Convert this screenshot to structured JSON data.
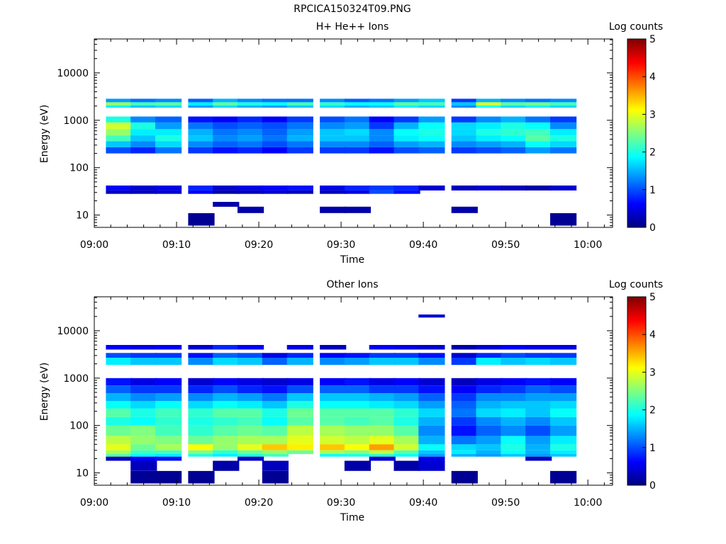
{
  "figure_title": "RPCICA150324T09.PNG",
  "chart_data": [
    {
      "type": "heatmap",
      "title": "H+ He++ Ions",
      "xlabel": "Time",
      "ylabel": "Energy (eV)",
      "x_ticks": [
        "09:00",
        "09:10",
        "09:20",
        "09:30",
        "09:40",
        "09:50",
        "10:00"
      ],
      "x_range": [
        "09:00",
        "10:03"
      ],
      "yscale": "log",
      "y_ticks": [
        10,
        100,
        1000,
        10000
      ],
      "ylim": [
        5.5,
        52000
      ],
      "colorbar": {
        "label": "Log counts",
        "ticks": [
          0,
          1,
          2,
          3,
          4,
          5
        ],
        "range": [
          0,
          5
        ],
        "colormap": "jet"
      },
      "time_bins": [
        "09:03",
        "09:06",
        "09:09",
        "09:13",
        "09:16",
        "09:19",
        "09:22",
        "09:25",
        "09:29",
        "09:32",
        "09:35",
        "09:38",
        "09:41",
        "09:45",
        "09:48",
        "09:51",
        "09:54",
        "09:57"
      ],
      "energy_bands": [
        {
          "e_low": 2400,
          "e_high": 2850,
          "counts": [
            1.4,
            1.2,
            1.3,
            1.1,
            1.5,
            1.3,
            1.2,
            1.2,
            1.3,
            1.1,
            1.2,
            1.4,
            1.6,
            0.9,
            1.5,
            1.3,
            1.2,
            1.3
          ]
        },
        {
          "e_low": 2050,
          "e_high": 2400,
          "counts": [
            2.6,
            2.2,
            2.3,
            1.8,
            2.3,
            2.0,
            1.9,
            2.2,
            2.1,
            1.9,
            1.9,
            2.3,
            2.2,
            1.6,
            2.9,
            2.3,
            2.4,
            2.2
          ]
        },
        {
          "e_low": 1850,
          "e_high": 2050,
          "counts": [
            1.8,
            1.6,
            1.7,
            1.4,
            1.7,
            1.5,
            1.4,
            1.6,
            1.7,
            1.5,
            1.6,
            1.8,
            1.7,
            1.3,
            1.9,
            1.7,
            1.8,
            1.7
          ]
        },
        {
          "e_low": 900,
          "e_high": 1200,
          "counts": [
            2.0,
            1.3,
            1.1,
            0.7,
            0.6,
            0.8,
            0.6,
            0.9,
            1.0,
            1.2,
            0.6,
            0.9,
            1.4,
            0.9,
            1.3,
            1.5,
            1.2,
            0.9
          ]
        },
        {
          "e_low": 650,
          "e_high": 900,
          "counts": [
            2.9,
            2.0,
            1.4,
            1.2,
            1.0,
            1.1,
            1.0,
            1.2,
            1.3,
            1.4,
            0.9,
            1.5,
            1.9,
            1.7,
            1.8,
            2.0,
            1.9,
            1.3
          ]
        },
        {
          "e_low": 480,
          "e_high": 650,
          "counts": [
            2.6,
            1.8,
            1.8,
            1.5,
            1.2,
            1.3,
            1.1,
            1.4,
            1.6,
            1.7,
            1.3,
            1.9,
            2.0,
            1.7,
            2.0,
            2.1,
            2.2,
            1.8
          ]
        },
        {
          "e_low": 360,
          "e_high": 480,
          "counts": [
            2.2,
            1.6,
            2.0,
            1.6,
            1.3,
            1.4,
            1.2,
            1.5,
            1.6,
            1.6,
            1.3,
            1.8,
            1.9,
            1.6,
            1.8,
            1.9,
            2.3,
            2.0
          ]
        },
        {
          "e_low": 270,
          "e_high": 360,
          "counts": [
            1.6,
            1.3,
            1.7,
            1.3,
            1.1,
            1.2,
            1.0,
            1.2,
            1.3,
            1.3,
            1.1,
            1.4,
            1.5,
            1.3,
            1.4,
            1.5,
            1.9,
            1.7
          ]
        },
        {
          "e_low": 200,
          "e_high": 270,
          "counts": [
            1.0,
            0.8,
            1.2,
            0.9,
            0.7,
            0.8,
            0.6,
            0.9,
            0.9,
            0.9,
            0.7,
            1.0,
            1.1,
            0.9,
            1.0,
            1.1,
            1.4,
            1.2
          ]
        },
        {
          "e_low": 33,
          "e_high": 42,
          "counts": [
            0.6,
            0.4,
            0.5,
            0.8,
            0.4,
            0.5,
            0.6,
            0.7,
            0.5,
            0.8,
            0.9,
            0.8,
            0.4,
            0.3,
            0.4,
            0.3,
            0.2,
            0.4
          ]
        },
        {
          "e_low": 28,
          "e_high": 33,
          "counts": [
            0.3,
            0.3,
            0.4,
            0.6,
            0.2,
            0.3,
            0.4,
            0.3,
            0.3,
            0.5,
            1.0,
            0.7,
            null,
            null,
            null,
            null,
            null,
            null
          ]
        },
        {
          "e_low": 15,
          "e_high": 19,
          "counts": [
            null,
            null,
            null,
            null,
            0.2,
            null,
            null,
            null,
            null,
            null,
            null,
            null,
            null,
            null,
            null,
            null,
            null,
            null
          ]
        },
        {
          "e_low": 11,
          "e_high": 15,
          "counts": [
            null,
            null,
            null,
            null,
            null,
            0.2,
            null,
            null,
            0.2,
            0.2,
            null,
            null,
            null,
            0.2,
            null,
            null,
            null,
            null
          ]
        },
        {
          "e_low": 6,
          "e_high": 11,
          "counts": [
            null,
            null,
            null,
            0.1,
            null,
            null,
            null,
            null,
            null,
            null,
            null,
            null,
            null,
            null,
            null,
            null,
            null,
            0.1
          ]
        }
      ]
    },
    {
      "type": "heatmap",
      "title": "Other Ions",
      "xlabel": "Time",
      "ylabel": "Energy (eV)",
      "x_ticks": [
        "09:00",
        "09:10",
        "09:20",
        "09:30",
        "09:40",
        "09:50",
        "10:00"
      ],
      "x_range": [
        "09:00",
        "10:03"
      ],
      "yscale": "log",
      "y_ticks": [
        10,
        100,
        1000,
        10000
      ],
      "ylim": [
        5.5,
        52000
      ],
      "colorbar": {
        "label": "Log counts",
        "ticks": [
          0,
          1,
          2,
          3,
          4,
          5
        ],
        "range": [
          0,
          5
        ],
        "colormap": "jet"
      },
      "time_bins": [
        "09:03",
        "09:06",
        "09:09",
        "09:13",
        "09:16",
        "09:19",
        "09:22",
        "09:25",
        "09:29",
        "09:32",
        "09:35",
        "09:38",
        "09:41",
        "09:45",
        "09:48",
        "09:51",
        "09:54",
        "09:57"
      ],
      "energy_bands": [
        {
          "e_low": 19000,
          "e_high": 22000,
          "counts": [
            null,
            null,
            null,
            null,
            null,
            null,
            null,
            null,
            null,
            null,
            null,
            null,
            0.4,
            null,
            null,
            null,
            null,
            null
          ]
        },
        {
          "e_low": 4000,
          "e_high": 5000,
          "counts": [
            0.6,
            0.5,
            0.6,
            0.4,
            0.8,
            0.6,
            null,
            0.5,
            0.3,
            null,
            0.6,
            0.5,
            0.4,
            0.2,
            0.4,
            0.6,
            0.5,
            0.5
          ]
        },
        {
          "e_low": 2700,
          "e_high": 3400,
          "counts": [
            1.0,
            0.9,
            0.9,
            0.7,
            1.1,
            1.0,
            0.5,
            0.8,
            0.6,
            0.7,
            0.9,
            0.9,
            0.7,
            0.4,
            0.8,
            1.0,
            0.9,
            0.9
          ]
        },
        {
          "e_low": 1900,
          "e_high": 2700,
          "counts": [
            1.8,
            1.6,
            1.6,
            1.3,
            1.7,
            1.6,
            1.1,
            1.5,
            1.3,
            1.4,
            1.6,
            1.6,
            1.3,
            0.9,
            1.8,
            1.6,
            1.7,
            1.6
          ]
        },
        {
          "e_low": 700,
          "e_high": 1000,
          "counts": [
            0.7,
            0.5,
            0.6,
            0.4,
            0.6,
            0.5,
            0.4,
            0.5,
            0.6,
            0.7,
            0.5,
            0.6,
            0.4,
            0.3,
            0.5,
            0.6,
            0.7,
            0.6
          ]
        },
        {
          "e_low": 480,
          "e_high": 700,
          "counts": [
            1.1,
            0.9,
            0.9,
            0.8,
            1.0,
            0.8,
            0.7,
            1.0,
            1.1,
            1.1,
            0.9,
            0.9,
            0.7,
            0.6,
            0.8,
            0.9,
            1.1,
            1.0
          ]
        },
        {
          "e_low": 330,
          "e_high": 480,
          "counts": [
            1.5,
            1.3,
            1.4,
            1.3,
            1.5,
            1.4,
            1.2,
            1.6,
            1.6,
            1.6,
            1.5,
            1.4,
            1.1,
            0.9,
            1.3,
            1.3,
            1.4,
            1.4
          ]
        },
        {
          "e_low": 230,
          "e_high": 330,
          "counts": [
            1.9,
            1.7,
            1.9,
            1.7,
            1.9,
            1.8,
            1.6,
            2.0,
            1.9,
            1.9,
            1.8,
            1.7,
            1.4,
            1.1,
            1.5,
            1.6,
            1.6,
            1.7
          ]
        },
        {
          "e_low": 150,
          "e_high": 230,
          "counts": [
            2.3,
            2.0,
            2.2,
            2.1,
            2.3,
            2.3,
            2.0,
            2.4,
            2.3,
            2.3,
            2.3,
            2.1,
            1.7,
            1.2,
            1.7,
            1.8,
            1.6,
            1.9
          ]
        },
        {
          "e_low": 100,
          "e_high": 150,
          "counts": [
            2.0,
            1.9,
            2.1,
            2.0,
            2.1,
            2.2,
            1.9,
            2.3,
            2.3,
            2.2,
            2.3,
            2.0,
            1.5,
            0.9,
            1.3,
            1.5,
            1.3,
            1.6
          ]
        },
        {
          "e_low": 60,
          "e_high": 100,
          "counts": [
            2.4,
            2.5,
            2.2,
            2.1,
            2.3,
            2.4,
            2.3,
            2.8,
            2.7,
            2.6,
            2.6,
            2.3,
            1.3,
            0.7,
            1.1,
            1.3,
            1.0,
            1.4
          ]
        },
        {
          "e_low": 40,
          "e_high": 60,
          "counts": [
            2.8,
            2.6,
            2.5,
            2.4,
            2.6,
            2.7,
            2.7,
            3.0,
            2.9,
            2.8,
            3.0,
            2.7,
            1.5,
            1.2,
            1.4,
            1.9,
            1.4,
            1.8
          ]
        },
        {
          "e_low": 30,
          "e_high": 40,
          "counts": [
            3.0,
            2.4,
            2.7,
            3.1,
            2.6,
            3.0,
            3.4,
            3.2,
            3.4,
            3.1,
            3.6,
            2.9,
            1.9,
            1.7,
            1.6,
            2.0,
            1.5,
            2.0
          ]
        },
        {
          "e_low": 25,
          "e_high": 30,
          "counts": [
            2.7,
            2.2,
            2.2,
            2.5,
            2.1,
            2.4,
            2.6,
            2.4,
            2.7,
            2.5,
            2.8,
            2.3,
            1.6,
            1.8,
            1.5,
            1.9,
            1.5,
            1.8
          ]
        },
        {
          "e_low": 22,
          "e_high": 25,
          "counts": [
            2.3,
            1.9,
            1.8,
            2.0,
            1.8,
            2.0,
            2.2,
            null,
            1.9,
            2.0,
            2.1,
            1.9,
            1.4,
            1.5,
            1.4,
            1.6,
            1.4,
            1.6
          ]
        },
        {
          "e_low": 18,
          "e_high": 22,
          "counts": [
            0.3,
            0.6,
            0.7,
            null,
            null,
            0.3,
            null,
            null,
            null,
            null,
            0.4,
            null,
            0.5,
            null,
            null,
            null,
            0.3,
            null
          ]
        },
        {
          "e_low": 11,
          "e_high": 18,
          "counts": [
            null,
            0.3,
            null,
            null,
            0.2,
            null,
            0.3,
            null,
            null,
            0.2,
            null,
            0.2,
            0.4,
            null,
            null,
            null,
            null,
            null
          ]
        },
        {
          "e_low": 6,
          "e_high": 11,
          "counts": [
            null,
            0.1,
            0.1,
            0.1,
            null,
            null,
            0.1,
            null,
            null,
            null,
            null,
            null,
            null,
            0.1,
            null,
            null,
            null,
            0.1
          ]
        }
      ]
    }
  ]
}
